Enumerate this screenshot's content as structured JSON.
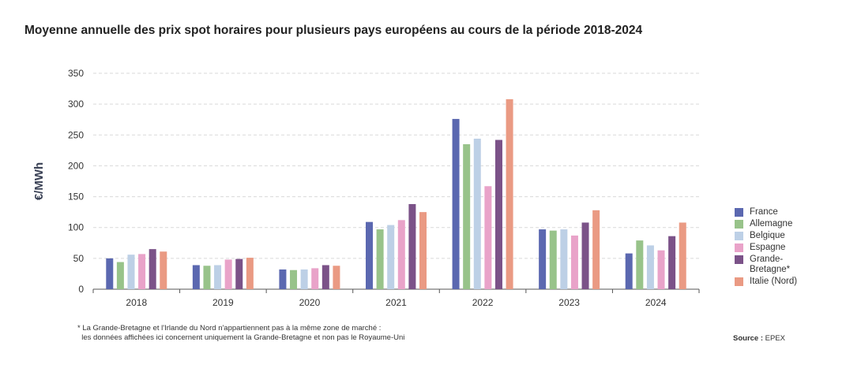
{
  "chart_data": {
    "type": "bar",
    "title": "Moyenne annuelle des prix spot horaires pour plusieurs pays européens au cours de la période 2018-2024",
    "ylabel": "€/MWh",
    "xlabel": "",
    "ylim": [
      0,
      350
    ],
    "yticks": [
      0,
      50,
      100,
      150,
      200,
      250,
      300,
      350
    ],
    "grid": true,
    "legend_position": "right",
    "categories": [
      "2018",
      "2019",
      "2020",
      "2021",
      "2022",
      "2023",
      "2024"
    ],
    "series": [
      {
        "name": "France",
        "color": "#5b68b0",
        "values": [
          50,
          39,
          32,
          109,
          276,
          97,
          58
        ]
      },
      {
        "name": "Allemagne",
        "color": "#98c38a",
        "values": [
          44,
          38,
          31,
          97,
          235,
          95,
          79
        ]
      },
      {
        "name": "Belgique",
        "color": "#bdd0e6",
        "values": [
          56,
          39,
          32,
          104,
          244,
          97,
          71
        ]
      },
      {
        "name": "Espagne",
        "color": "#e9a3c9",
        "values": [
          57,
          48,
          34,
          112,
          167,
          87,
          63
        ]
      },
      {
        "name": "Grande-Bretagne*",
        "legend_lines": [
          "Grande-",
          "Bretagne*"
        ],
        "color": "#7b5288",
        "values": [
          65,
          49,
          39,
          138,
          242,
          108,
          86
        ]
      },
      {
        "name": "Italie (Nord)",
        "color": "#ea9a83",
        "values": [
          61,
          51,
          38,
          125,
          308,
          128,
          108
        ]
      }
    ]
  },
  "footnote": {
    "line1": "* La Grande-Bretagne et l'Irlande du Nord n'appartiennent pas à la même zone de marché :",
    "line2": "  les données affichées ici concernent uniquement la Grande-Bretagne et non pas le Royaume-Uni"
  },
  "source": {
    "label": "Source :",
    "value": " EPEX"
  }
}
